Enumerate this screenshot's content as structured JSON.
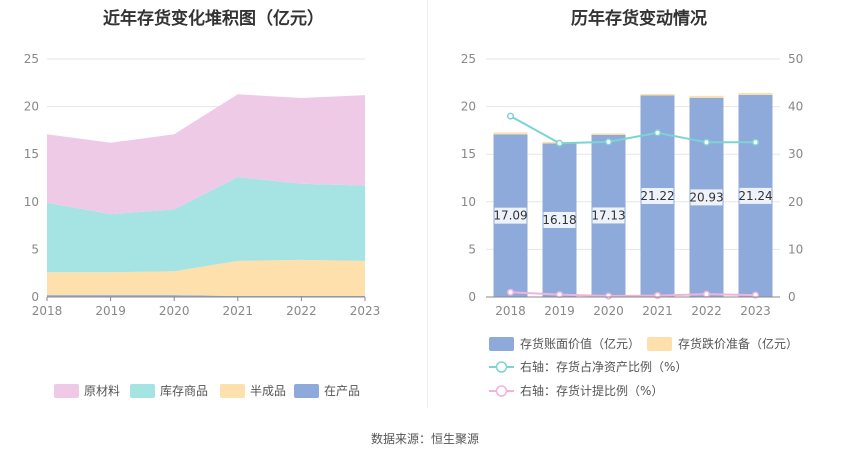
{
  "chart_data": [
    {
      "type": "area",
      "title": "近年存货变化堆积图（亿元）",
      "x": [
        "2018",
        "2019",
        "2020",
        "2021",
        "2022",
        "2023"
      ],
      "ylim": [
        0,
        25
      ],
      "yticks": [
        "0",
        "5",
        "10",
        "15",
        "20",
        "25"
      ],
      "stacked": true,
      "series": [
        {
          "name": "在产品",
          "color": "#8eaadb",
          "values": [
            0.2,
            0.2,
            0.2,
            0.1,
            0.1,
            0.1
          ]
        },
        {
          "name": "半成品",
          "color": "#fde0ab",
          "values": [
            2.4,
            2.4,
            2.5,
            3.7,
            3.8,
            3.7
          ]
        },
        {
          "name": "库存商品",
          "color": "#a6e3e3",
          "values": [
            7.3,
            6.1,
            6.5,
            8.8,
            8.0,
            7.9
          ]
        },
        {
          "name": "原材料",
          "color": "#efcae6",
          "values": [
            7.2,
            7.5,
            7.9,
            8.7,
            9.0,
            9.5
          ]
        }
      ],
      "legend_position": "bottom",
      "legend_order": [
        "原材料",
        "库存商品",
        "半成品",
        "在产品"
      ]
    },
    {
      "type": "bar",
      "title": "历年存货变动情况",
      "categories": [
        "2018",
        "2019",
        "2020",
        "2021",
        "2022",
        "2023"
      ],
      "ylim": [
        0,
        25
      ],
      "yticks": [
        "0",
        "5",
        "10",
        "15",
        "20",
        "25"
      ],
      "y2lim": [
        0,
        50
      ],
      "y2ticks": [
        "0",
        "10",
        "20",
        "30",
        "40",
        "50"
      ],
      "series": [
        {
          "name": "存货账面价值（亿元）",
          "axis": "left",
          "kind": "bar",
          "color": "#8eaadb",
          "values": [
            17.09,
            16.18,
            17.13,
            21.22,
            20.93,
            21.24
          ],
          "labels": [
            "17.09",
            "16.18",
            "17.13",
            "21.22",
            "20.93",
            "21.24"
          ]
        },
        {
          "name": "存货跌价准备（亿元）",
          "axis": "left",
          "kind": "bar-stack",
          "color": "#fde0ab",
          "values": [
            0.2,
            0.1,
            0.05,
            0.1,
            0.2,
            0.2
          ]
        },
        {
          "name": "右轴：存货占净资产比例（%）",
          "axis": "right",
          "kind": "line",
          "color": "#7dd3d3",
          "values": [
            38.0,
            32.3,
            32.6,
            34.5,
            32.5,
            32.5
          ]
        },
        {
          "name": "右轴：存货计提比例（%）",
          "axis": "right",
          "kind": "line",
          "color": "#f0b4dc",
          "values": [
            1.0,
            0.5,
            0.2,
            0.3,
            0.6,
            0.4
          ]
        }
      ],
      "legend_position": "bottom"
    }
  ],
  "footer": {
    "source": "数据来源：恒生聚源"
  }
}
